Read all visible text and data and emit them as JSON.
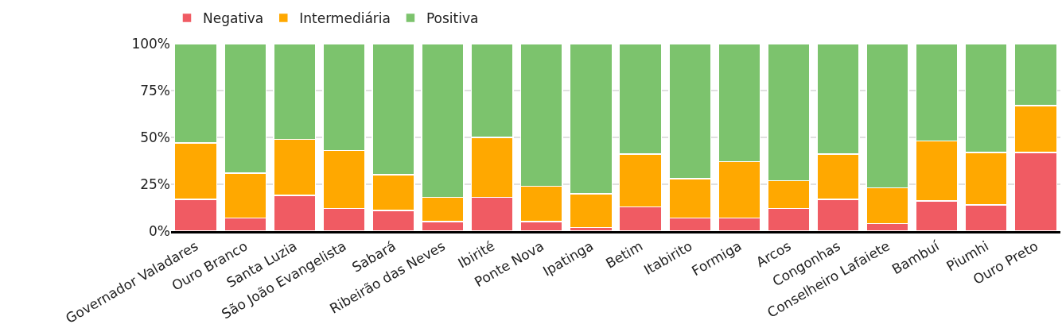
{
  "chart_data": {
    "type": "bar",
    "stacked": true,
    "categories": [
      "Governador Valadares",
      "Ouro Branco",
      "Santa Luzia",
      "São João Evangelista",
      "Sabará",
      "Ribeirão das Neves",
      "Ibirité",
      "Ponte Nova",
      "Ipatinga",
      "Betim",
      "Itabirito",
      "Formiga",
      "Arcos",
      "Congonhas",
      "Conselheiro Lafaiete",
      "Bambuí",
      "Piumhi",
      "Ouro Preto"
    ],
    "series": [
      {
        "name": "Negativa",
        "color": "#f05b63",
        "values": [
          17,
          7,
          19,
          12,
          11,
          5,
          18,
          5,
          2,
          13,
          7,
          7,
          12,
          17,
          4,
          16,
          14,
          42
        ]
      },
      {
        "name": "Intermediária",
        "color": "#ffa800",
        "values": [
          30,
          24,
          30,
          31,
          19,
          13,
          32,
          19,
          18,
          28,
          21,
          30,
          15,
          24,
          19,
          32,
          28,
          25
        ]
      },
      {
        "name": "Positiva",
        "color": "#7cc36d",
        "values": [
          53,
          69,
          51,
          57,
          70,
          82,
          50,
          76,
          80,
          59,
          72,
          63,
          73,
          59,
          77,
          52,
          58,
          33
        ]
      }
    ],
    "ylim": [
      0,
      100
    ],
    "yticks": [
      {
        "value": 0,
        "label": "0%"
      },
      {
        "value": 25,
        "label": "25%"
      },
      {
        "value": 50,
        "label": "50%"
      },
      {
        "value": 75,
        "label": "75%"
      },
      {
        "value": 100,
        "label": "100%"
      }
    ],
    "grid": "y",
    "legend": "top left"
  }
}
